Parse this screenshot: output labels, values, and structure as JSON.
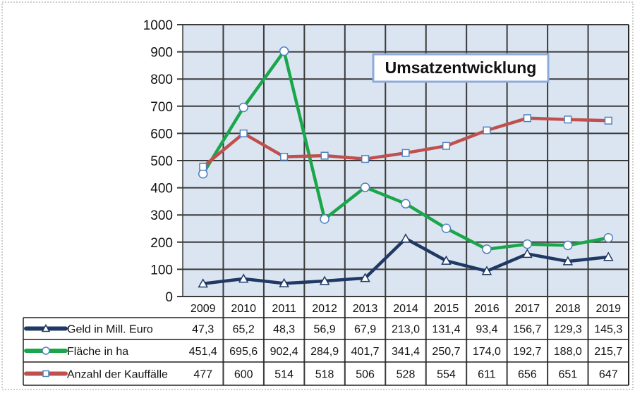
{
  "chart_data": {
    "type": "line",
    "title": "Umsatzentwicklung",
    "categories": [
      "2009",
      "2010",
      "2011",
      "2012",
      "2013",
      "2014",
      "2015",
      "2016",
      "2017",
      "2018",
      "2019"
    ],
    "ylim": [
      0,
      1000
    ],
    "yticks": [
      "0",
      "100",
      "200",
      "300",
      "400",
      "500",
      "600",
      "700",
      "800",
      "900",
      "1000"
    ],
    "grid": true,
    "legend": "table-bottom",
    "series": [
      {
        "name": "Geld in Mill. Euro",
        "color": "#1f3864",
        "marker": "triangle",
        "values": [
          47.3,
          65.2,
          48.3,
          56.9,
          67.9,
          213.0,
          131.4,
          93.4,
          156.7,
          129.3,
          145.3
        ],
        "labels": [
          "47,3",
          "65,2",
          "48,3",
          "56,9",
          "67,9",
          "213,0",
          "131,4",
          "93,4",
          "156,7",
          "129,3",
          "145,3"
        ]
      },
      {
        "name": "Fläche in ha",
        "color": "#1aa64a",
        "marker": "circle",
        "values": [
          451.4,
          695.6,
          902.4,
          284.9,
          401.7,
          341.4,
          250.7,
          174.0,
          192.7,
          188.0,
          215.7
        ],
        "labels": [
          "451,4",
          "695,6",
          "902,4",
          "284,9",
          "401,7",
          "341,4",
          "250,7",
          "174,0",
          "192,7",
          "188,0",
          "215,7"
        ]
      },
      {
        "name": "Anzahl der Kauffälle",
        "color": "#c0504d",
        "marker": "square",
        "values": [
          477,
          600,
          514,
          518,
          506,
          528,
          554,
          611,
          656,
          651,
          647
        ],
        "labels": [
          "477",
          "600",
          "514",
          "518",
          "506",
          "528",
          "554",
          "611",
          "656",
          "651",
          "647"
        ]
      }
    ]
  }
}
